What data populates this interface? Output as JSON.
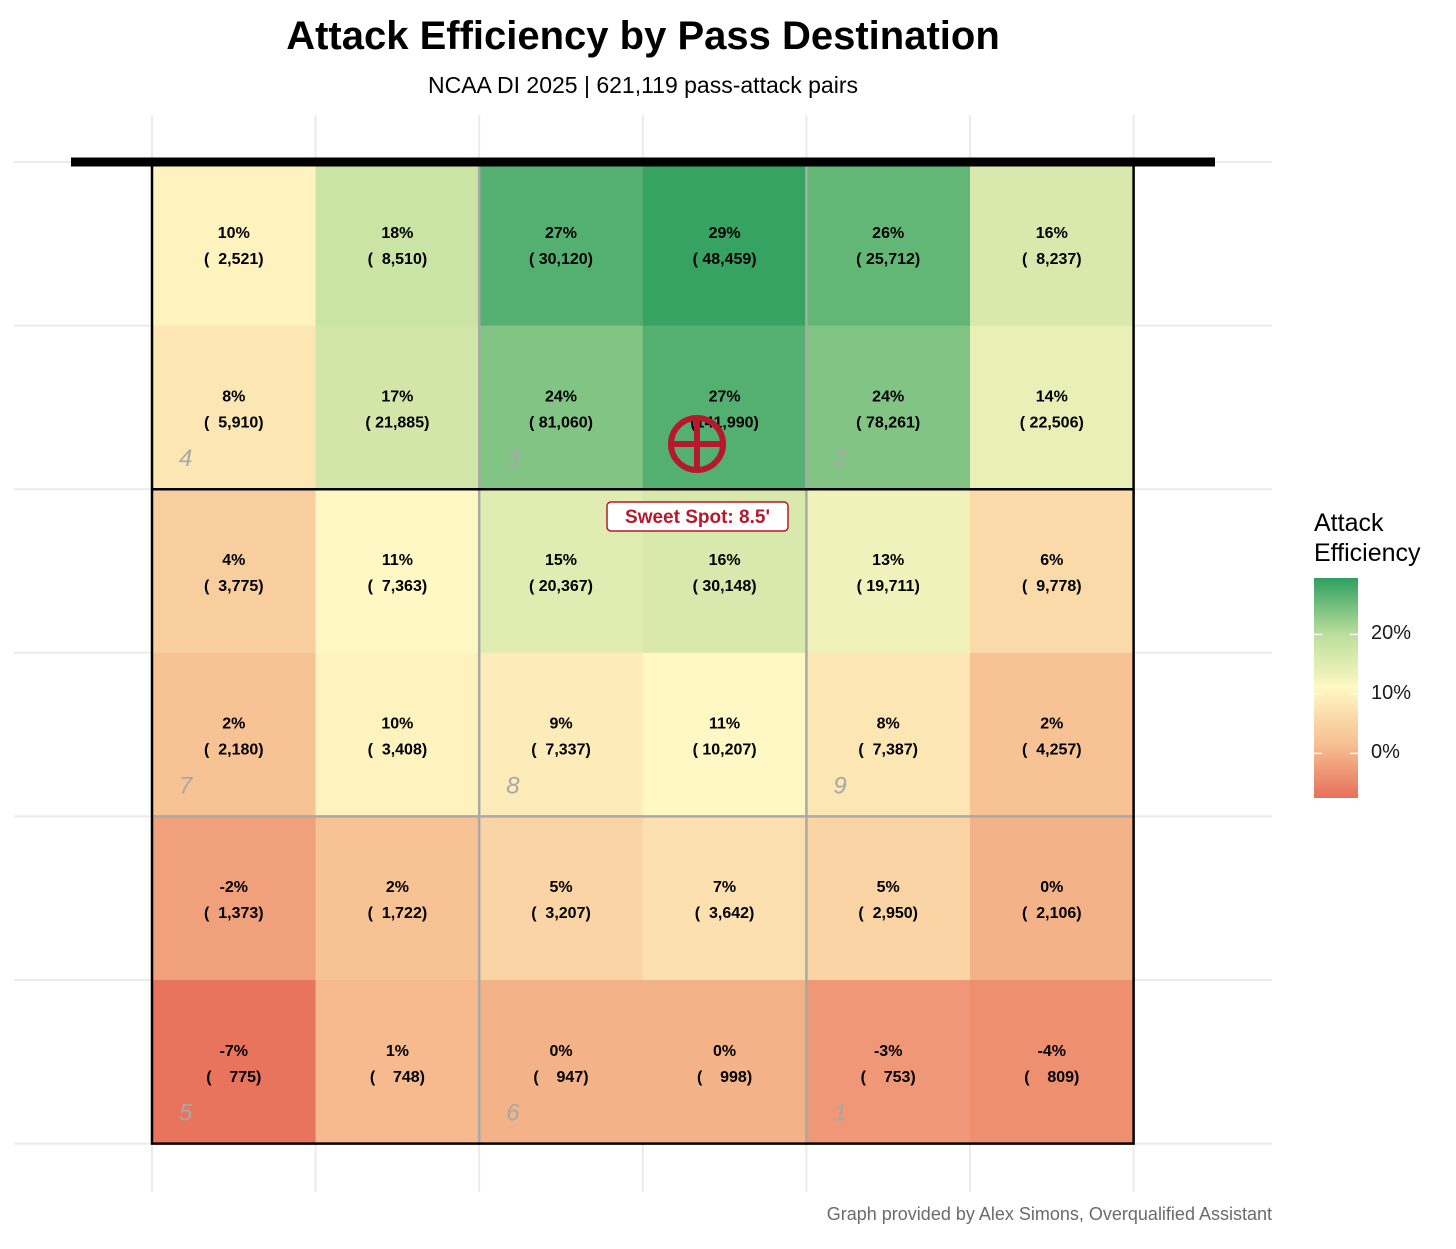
{
  "title": "Attack Efficiency by Pass Destination",
  "subtitle": "NCAA DI 2025 | 621,119 pass-attack pairs",
  "caption": "Graph provided by Alex Simons, Overqualified Assistant",
  "chart_data": {
    "type": "heatmap",
    "legend": {
      "title_line1": "Attack",
      "title_line2": "Efficiency",
      "ticks": [
        {
          "value": 20,
          "label": "20%"
        },
        {
          "value": 10,
          "label": "10%"
        },
        {
          "value": 0,
          "label": "0%"
        }
      ],
      "range": [
        -7.5,
        29.5
      ],
      "placement": "right"
    },
    "color_scale": [
      "#e8705a",
      "#f7c193",
      "#fff8c4",
      "#b9dd9b",
      "#2ea060"
    ],
    "rows": [
      [
        {
          "eff": 10,
          "label": "10%",
          "count": "(  2,521)"
        },
        {
          "eff": 18,
          "label": "18%",
          "count": "(  8,510)"
        },
        {
          "eff": 27,
          "label": "27%",
          "count": "( 30,120)"
        },
        {
          "eff": 29,
          "label": "29%",
          "count": "( 48,459)"
        },
        {
          "eff": 26,
          "label": "26%",
          "count": "( 25,712)"
        },
        {
          "eff": 16,
          "label": "16%",
          "count": "(  8,237)"
        }
      ],
      [
        {
          "eff": 8,
          "label": "8%",
          "count": "(  5,910)"
        },
        {
          "eff": 17,
          "label": "17%",
          "count": "( 21,885)"
        },
        {
          "eff": 24,
          "label": "24%",
          "count": "( 81,060)"
        },
        {
          "eff": 27,
          "label": "27%",
          "count": "(141,990)"
        },
        {
          "eff": 24,
          "label": "24%",
          "count": "( 78,261)"
        },
        {
          "eff": 14,
          "label": "14%",
          "count": "( 22,506)"
        }
      ],
      [
        {
          "eff": 4,
          "label": "4%",
          "count": "(  3,775)"
        },
        {
          "eff": 11,
          "label": "11%",
          "count": "(  7,363)"
        },
        {
          "eff": 15,
          "label": "15%",
          "count": "( 20,367)"
        },
        {
          "eff": 16,
          "label": "16%",
          "count": "( 30,148)"
        },
        {
          "eff": 13,
          "label": "13%",
          "count": "( 19,711)"
        },
        {
          "eff": 6,
          "label": "6%",
          "count": "(  9,778)"
        }
      ],
      [
        {
          "eff": 2,
          "label": "2%",
          "count": "(  2,180)"
        },
        {
          "eff": 10,
          "label": "10%",
          "count": "(  3,408)"
        },
        {
          "eff": 9,
          "label": "9%",
          "count": "(  7,337)"
        },
        {
          "eff": 11,
          "label": "11%",
          "count": "( 10,207)"
        },
        {
          "eff": 8,
          "label": "8%",
          "count": "(  7,387)"
        },
        {
          "eff": 2,
          "label": "2%",
          "count": "(  4,257)"
        }
      ],
      [
        {
          "eff": -2,
          "label": "-2%",
          "count": "(  1,373)"
        },
        {
          "eff": 2,
          "label": "2%",
          "count": "(  1,722)"
        },
        {
          "eff": 5,
          "label": "5%",
          "count": "(  3,207)"
        },
        {
          "eff": 7,
          "label": "7%",
          "count": "(  3,642)"
        },
        {
          "eff": 5,
          "label": "5%",
          "count": "(  2,950)"
        },
        {
          "eff": 0,
          "label": "0%",
          "count": "(  2,106)"
        }
      ],
      [
        {
          "eff": -7,
          "label": "-7%",
          "count": "(    775)"
        },
        {
          "eff": 1,
          "label": "1%",
          "count": "(    748)"
        },
        {
          "eff": 0,
          "label": "0%",
          "count": "(    947)"
        },
        {
          "eff": 0,
          "label": "0%",
          "count": "(    998)"
        },
        {
          "eff": -3,
          "label": "-3%",
          "count": "(    753)"
        },
        {
          "eff": -4,
          "label": "-4%",
          "count": "(    809)"
        }
      ]
    ],
    "zones": [
      {
        "label": "4",
        "row": 1,
        "col": 0
      },
      {
        "label": "3",
        "row": 1,
        "col": 2
      },
      {
        "label": "2",
        "row": 1,
        "col": 4
      },
      {
        "label": "7",
        "row": 3,
        "col": 0
      },
      {
        "label": "8",
        "row": 3,
        "col": 2
      },
      {
        "label": "9",
        "row": 3,
        "col": 4
      },
      {
        "label": "5",
        "row": 5,
        "col": 0
      },
      {
        "label": "6",
        "row": 5,
        "col": 2
      },
      {
        "label": "1",
        "row": 5,
        "col": 4
      }
    ],
    "sweet_spot": {
      "label": "Sweet Spot: 8.5'",
      "color": "#b5192b"
    }
  }
}
